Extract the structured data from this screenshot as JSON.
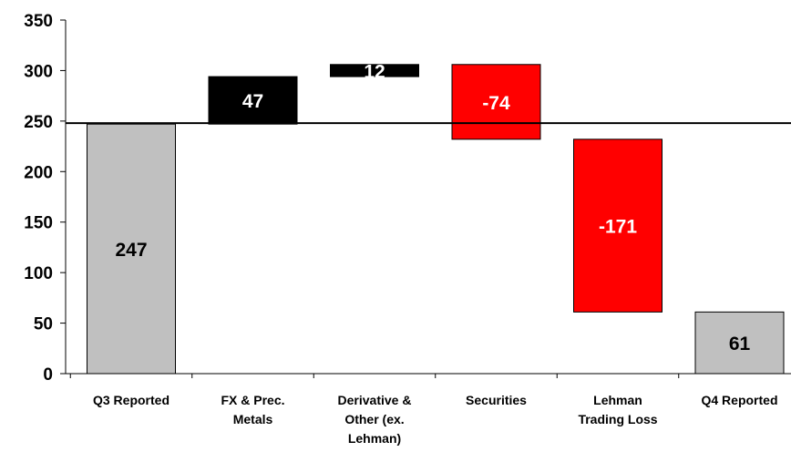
{
  "chart_data": {
    "type": "bar",
    "subtype": "waterfall",
    "categories": [
      [
        "Q3 Reported"
      ],
      [
        "FX & Prec.",
        "Metals"
      ],
      [
        "Derivative &",
        "Other (ex.",
        "Lehman)"
      ],
      [
        "Securities"
      ],
      [
        "Lehman",
        "Trading Loss"
      ],
      [
        "Q4 Reported"
      ]
    ],
    "values": [
      247,
      47,
      12,
      -74,
      -171,
      61
    ],
    "kinds": [
      "total",
      "increase",
      "increase",
      "decrease",
      "decrease",
      "total"
    ],
    "data_labels": [
      "247",
      "47",
      "12",
      "-74",
      "-171",
      "61"
    ],
    "ylim": [
      0,
      350
    ],
    "yticks": [
      "0",
      "50",
      "100",
      "150",
      "200",
      "250",
      "300",
      "350"
    ],
    "reference_line": 247,
    "grid": false,
    "legend": "none",
    "colors": {
      "total": "#c0c0c0",
      "increase": "#000000",
      "decrease": "#ff0000",
      "label_on_dark": "#ffffff",
      "label_on_light": "#000000"
    }
  }
}
